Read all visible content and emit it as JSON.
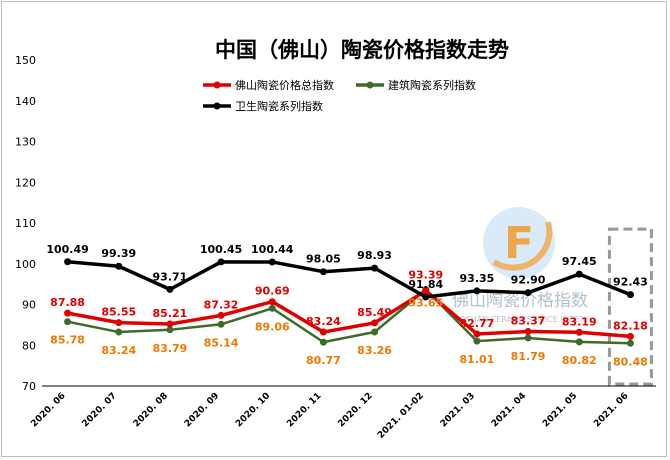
{
  "chart_data": {
    "type": "line",
    "title": "中国（佛山）陶瓷价格指数走势",
    "categories": [
      "2020. 06",
      "2020. 07",
      "2020. 08",
      "2020. 09",
      "2020. 10",
      "2020. 11",
      "2020. 12",
      "2021. 01-02",
      "2021. 03",
      "2021. 04",
      "2021. 05",
      "2021. 06"
    ],
    "ylim": [
      70,
      150
    ],
    "yticks": [
      70,
      80,
      90,
      100,
      110,
      120,
      130,
      140,
      150
    ],
    "xlabel": "",
    "ylabel": "",
    "grid": false,
    "legend_position": "top",
    "series": [
      {
        "name": "佛山陶瓷价格总指数",
        "color": "#e00000",
        "label_color": "#e00000",
        "values": [
          87.88,
          85.55,
          85.21,
          87.32,
          90.69,
          83.24,
          85.49,
          93.39,
          82.77,
          83.37,
          83.19,
          82.18
        ]
      },
      {
        "name": "建筑陶瓷系列指数",
        "color": "#3d6b2a",
        "label_color": "#f07800",
        "values": [
          85.78,
          83.24,
          83.79,
          85.14,
          89.06,
          80.77,
          83.26,
          93.65,
          81.01,
          81.79,
          80.82,
          80.48
        ]
      },
      {
        "name": "卫生陶瓷系列指数",
        "color": "#000000",
        "label_color": "#000000",
        "values": [
          100.49,
          99.39,
          93.71,
          100.45,
          100.44,
          98.05,
          98.93,
          91.84,
          93.35,
          92.9,
          97.45,
          92.43
        ]
      }
    ],
    "watermark": {
      "text_cn": "佛山陶瓷价格指数",
      "text_en": "FOSHAN CERAMICS PRICE INDEX",
      "logo_letter": "F"
    }
  }
}
